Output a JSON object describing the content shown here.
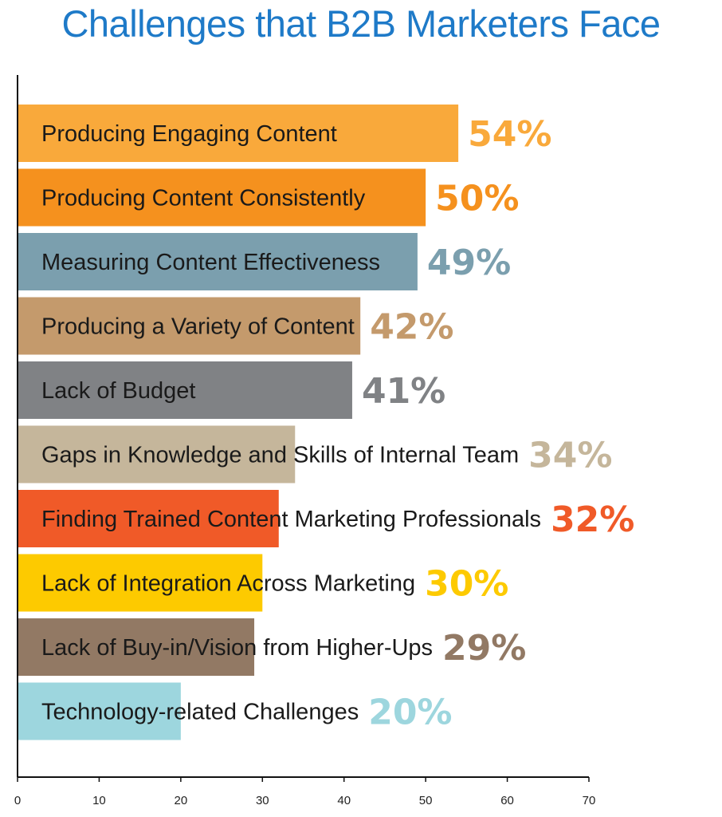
{
  "chart_data": {
    "type": "bar",
    "orientation": "horizontal",
    "title": "Challenges that B2B Marketers Face",
    "categories": [
      "Producing Engaging Content",
      "Producing Content Consistently",
      "Measuring Content Effectiveness",
      "Producing a Variety of Content",
      "Lack of Budget",
      "Gaps in Knowledge and Skills of Internal Team",
      "Finding Trained Content Marketing Professionals",
      "Lack of Integration Across Marketing",
      "Lack of Buy-in/Vision from Higher-Ups",
      "Technology-related Challenges"
    ],
    "values": [
      54,
      50,
      49,
      42,
      41,
      34,
      32,
      30,
      29,
      20
    ],
    "value_labels": [
      "54%",
      "50%",
      "49%",
      "42%",
      "41%",
      "34%",
      "32%",
      "30%",
      "29%",
      "20%"
    ],
    "colors": [
      "#f9a93b",
      "#f5911e",
      "#7b9fae",
      "#c49a6c",
      "#808285",
      "#c5b69b",
      "#f05a28",
      "#fdca00",
      "#927964",
      "#9dd6de"
    ],
    "xlim": [
      0,
      70
    ],
    "xticks": [
      0,
      10,
      20,
      30,
      40,
      50,
      60,
      70
    ],
    "xlabel": "",
    "ylabel": "",
    "grid": false,
    "legend": "none"
  }
}
